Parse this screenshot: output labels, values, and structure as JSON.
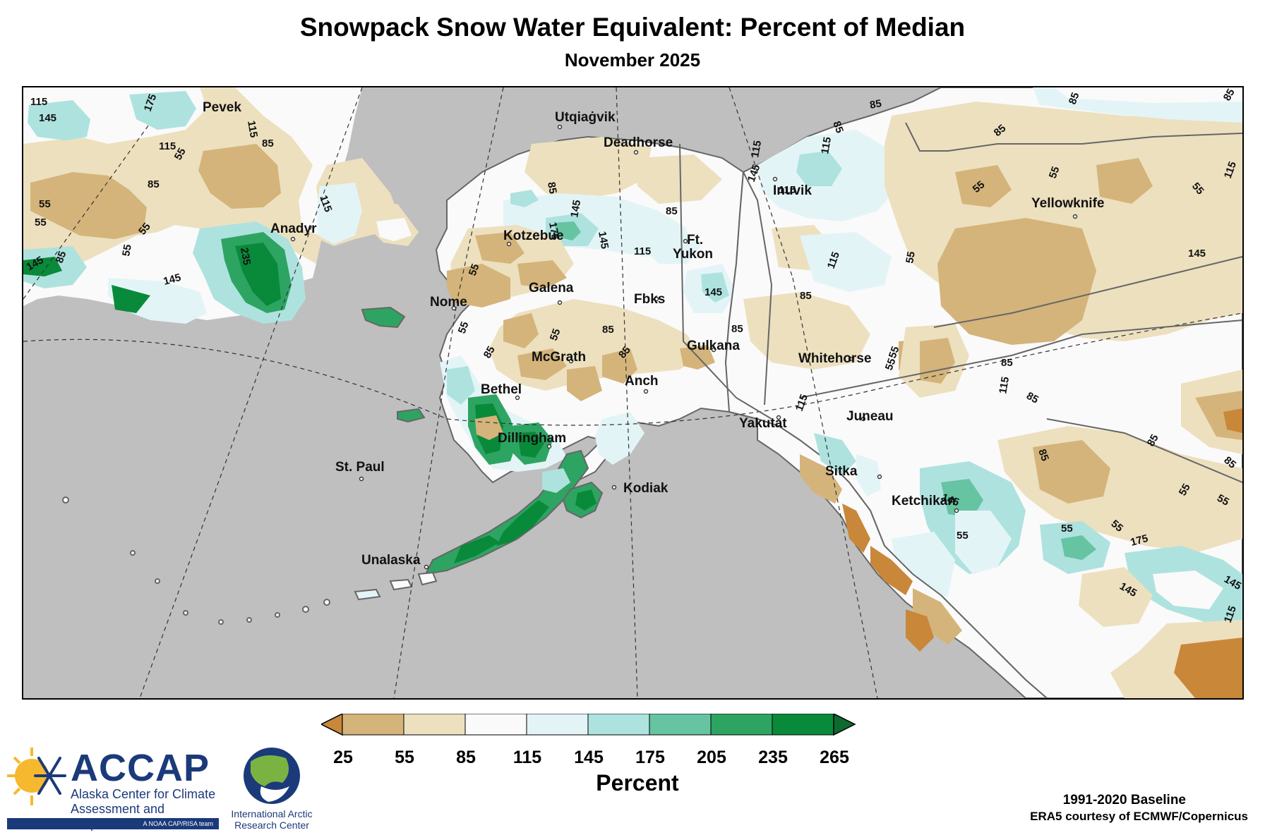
{
  "title": "Snowpack Snow Water Equivalent: Percent of Median",
  "subtitle": "November 2025",
  "colors": {
    "ocean": "#bfbfbf",
    "b25": "#d4b47a",
    "b55": "#ede0bf",
    "b85": "#fafafa",
    "b115": "#e3f4f7",
    "b145": "#aee2df",
    "b175": "#66c4a3",
    "b205": "#2ea462",
    "b235": "#098a3a",
    "under": "#c9873a"
  },
  "cities": [
    {
      "name": "Utqiaġvik",
      "id": "utqiagvik"
    },
    {
      "name": "Deadhorse",
      "id": "deadhorse"
    },
    {
      "name": "Pevek",
      "id": "pevek"
    },
    {
      "name": "Inuvik",
      "id": "inuvik"
    },
    {
      "name": "Yellowknife",
      "id": "yellowknife"
    },
    {
      "name": "Anadyr",
      "id": "anadyr"
    },
    {
      "name": "Kotzebue",
      "id": "kotzebue"
    },
    {
      "name": "Ft.",
      "id": "ft"
    },
    {
      "name": "Yukon",
      "id": "yukon"
    },
    {
      "name": "Nome",
      "id": "nome"
    },
    {
      "name": "Galena",
      "id": "galena"
    },
    {
      "name": "Fbks",
      "id": "fbks"
    },
    {
      "name": "Gulkana",
      "id": "gulkana"
    },
    {
      "name": "Whitehorse",
      "id": "whitehorse"
    },
    {
      "name": "McGrath",
      "id": "mcgrath"
    },
    {
      "name": "Anch",
      "id": "anch"
    },
    {
      "name": "Bethel",
      "id": "bethel"
    },
    {
      "name": "Yakutat",
      "id": "yakutat"
    },
    {
      "name": "Juneau",
      "id": "juneau"
    },
    {
      "name": "Dillingham",
      "id": "dillingham"
    },
    {
      "name": "Sitka",
      "id": "sitka"
    },
    {
      "name": "St. Paul",
      "id": "stpaul"
    },
    {
      "name": "Kodiak",
      "id": "kodiak"
    },
    {
      "name": "Ketchikan",
      "id": "ketchikan"
    },
    {
      "name": "Unalaska",
      "id": "unalaska"
    }
  ],
  "contour_labels": [
    "115",
    "145",
    "175",
    "115",
    "85",
    "115",
    "55",
    "85",
    "55",
    "55",
    "55",
    "115",
    "145",
    "235",
    "85",
    "145",
    "55",
    "55",
    "85",
    "145",
    "175",
    "115",
    "145",
    "85",
    "115",
    "115",
    "85",
    "55",
    "85",
    "55",
    "85",
    "85",
    "85",
    "55",
    "55",
    "55",
    "85",
    "85",
    "115",
    "85",
    "85",
    "55",
    "55",
    "145",
    "115",
    "145",
    "85",
    "85",
    "145",
    "55",
    "55",
    "85",
    "85",
    "115",
    "115",
    "145",
    "175",
    "145",
    "55",
    "145",
    "115",
    "85",
    "55",
    "115",
    "85",
    "55",
    "55"
  ],
  "colorbar": {
    "ticks": [
      "25",
      "55",
      "85",
      "115",
      "145",
      "175",
      "205",
      "235",
      "265"
    ],
    "label": "Percent"
  },
  "logos": {
    "accap_name": "ACCAP",
    "accap_tagline": "Alaska Center for Climate Assessment and Preparedness",
    "accap_team": "A NOAA CAP/RISA team",
    "iarc_name": "International Arctic Research Center"
  },
  "credits": {
    "baseline": "1991-2020 Baseline",
    "source": "ERA5 courtesy of ECMWF/Copernicus"
  }
}
